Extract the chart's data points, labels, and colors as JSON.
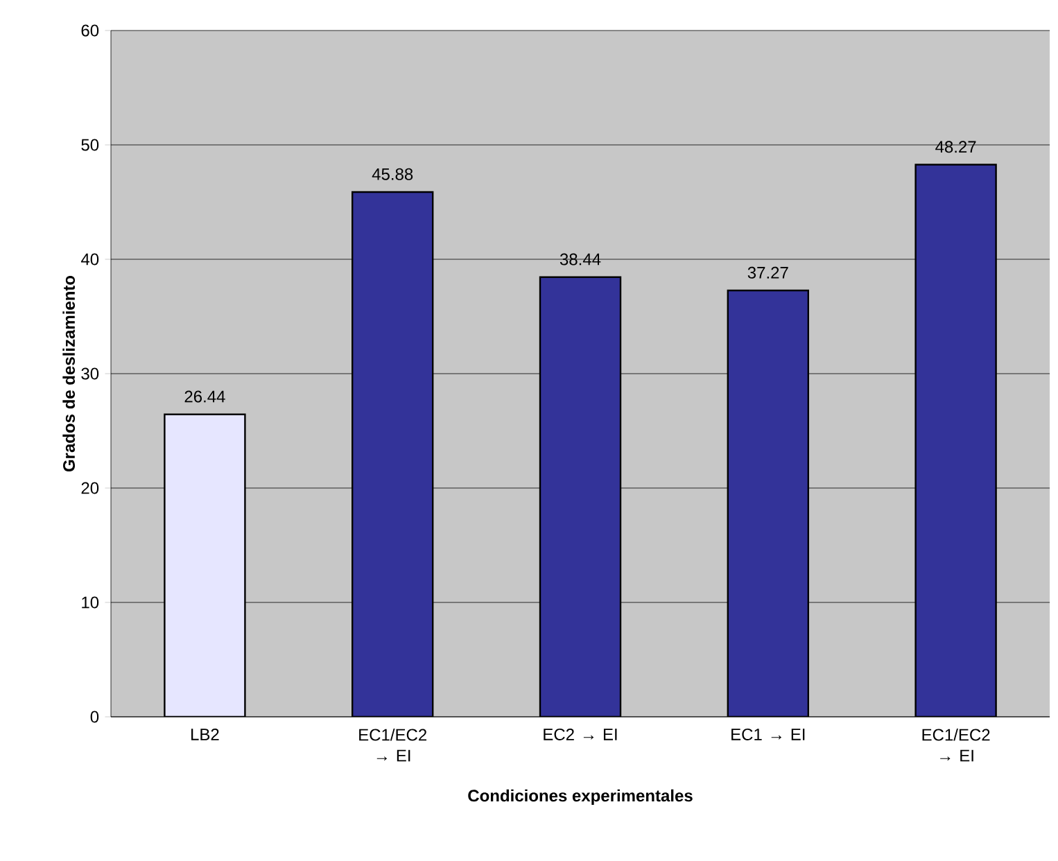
{
  "chart_data": {
    "type": "bar",
    "xlabel": "Condiciones experimentales",
    "ylabel": "Grados de deslizamiento",
    "categories": [
      "LB2",
      "EC1/EC2 → EI",
      "EC2 → EI",
      "EC1 → EI",
      "EC1/EC2 → EI"
    ],
    "values": [
      26.44,
      45.88,
      38.44,
      37.27,
      48.27
    ],
    "colors": [
      "#e6e6ff",
      "#333399",
      "#333399",
      "#333399",
      "#333399"
    ],
    "ylim": [
      0,
      60
    ],
    "yticks": [
      0,
      10,
      20,
      30,
      40,
      50,
      60
    ],
    "grid": "y",
    "data_labels": true
  }
}
